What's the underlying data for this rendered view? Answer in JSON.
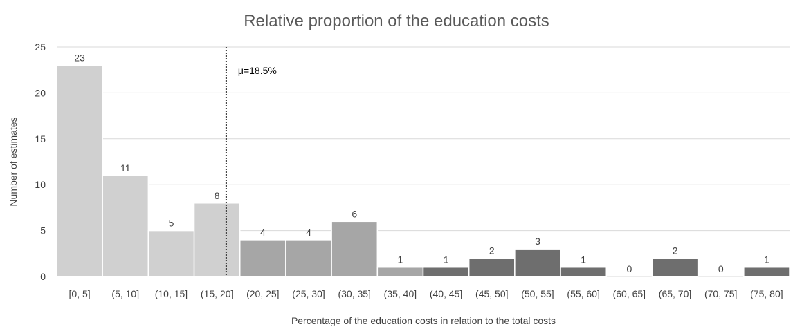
{
  "chart_data": {
    "type": "bar",
    "title": "Relative proportion of the education costs",
    "xlabel": "Percentage of the education costs in relation to the total costs",
    "ylabel": "Number of estimates",
    "ylim": [
      0,
      25
    ],
    "yticks": [
      0,
      5,
      10,
      15,
      20,
      25
    ],
    "grid": true,
    "categories": [
      "[0, 5]",
      "(5, 10]",
      "(10, 15]",
      "(15, 20]",
      "(20, 25]",
      "(25, 30]",
      "(30, 35]",
      "(35, 40]",
      "(40, 45]",
      "(45, 50]",
      "(50, 55]",
      "(55, 60]",
      "(60, 65]",
      "(65, 70]",
      "(70, 75]",
      "(75, 80]"
    ],
    "values": [
      23,
      11,
      5,
      8,
      4,
      4,
      6,
      1,
      1,
      2,
      3,
      1,
      0,
      2,
      0,
      1
    ],
    "bar_colors": [
      "#d0d0d0",
      "#d0d0d0",
      "#d0d0d0",
      "#d0d0d0",
      "#a6a6a6",
      "#a6a6a6",
      "#a6a6a6",
      "#a6a6a6",
      "#6e6e6e",
      "#6e6e6e",
      "#6e6e6e",
      "#6e6e6e",
      "#6e6e6e",
      "#6e6e6e",
      "#6e6e6e",
      "#6e6e6e"
    ],
    "reference_line": {
      "label": "μ=18.5%",
      "x": 18.5,
      "style": "dotted"
    }
  }
}
